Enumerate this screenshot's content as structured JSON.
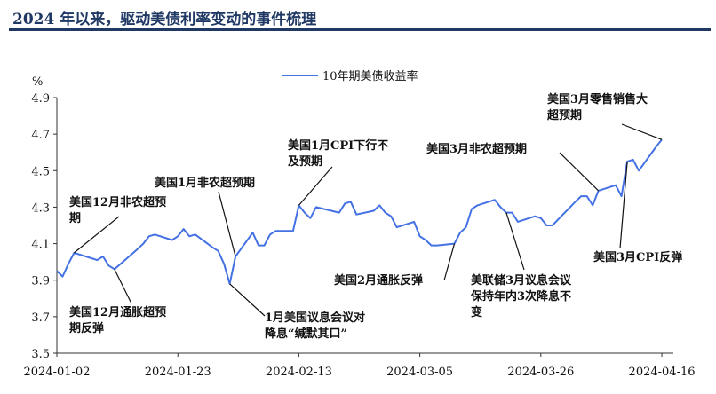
{
  "header": {
    "title": "2024 年以来，驱动美债利率变动的事件梳理"
  },
  "colors": {
    "series": "#4472e4",
    "axis": "#333333",
    "leader": "#111111",
    "title": "#1f3864"
  },
  "chart_data": {
    "type": "line",
    "ylabel": "%",
    "ylim": [
      3.5,
      4.9
    ],
    "yticks": [
      3.5,
      3.7,
      3.9,
      4.1,
      4.3,
      4.5,
      4.7,
      4.9
    ],
    "xlim": [
      "2024-01-02",
      "2024-04-18"
    ],
    "xticks": [
      "2024-01-02",
      "2024-01-23",
      "2024-02-13",
      "2024-03-05",
      "2024-03-26",
      "2024-04-16"
    ],
    "grid": false,
    "legend": "top-center",
    "series": [
      {
        "name": "10年期美债收益率",
        "points": [
          [
            "2024-01-02",
            3.95
          ],
          [
            "2024-01-03",
            3.92
          ],
          [
            "2024-01-04",
            3.99
          ],
          [
            "2024-01-05",
            4.05
          ],
          [
            "2024-01-08",
            4.02
          ],
          [
            "2024-01-09",
            4.01
          ],
          [
            "2024-01-10",
            4.03
          ],
          [
            "2024-01-11",
            3.98
          ],
          [
            "2024-01-12",
            3.96
          ],
          [
            "2024-01-16",
            4.07
          ],
          [
            "2024-01-17",
            4.1
          ],
          [
            "2024-01-18",
            4.14
          ],
          [
            "2024-01-19",
            4.15
          ],
          [
            "2024-01-22",
            4.12
          ],
          [
            "2024-01-23",
            4.14
          ],
          [
            "2024-01-24",
            4.18
          ],
          [
            "2024-01-25",
            4.14
          ],
          [
            "2024-01-26",
            4.15
          ],
          [
            "2024-01-29",
            4.08
          ],
          [
            "2024-01-30",
            4.06
          ],
          [
            "2024-01-31",
            3.99
          ],
          [
            "2024-02-01",
            3.88
          ],
          [
            "2024-02-02",
            4.03
          ],
          [
            "2024-02-05",
            4.16
          ],
          [
            "2024-02-06",
            4.09
          ],
          [
            "2024-02-07",
            4.09
          ],
          [
            "2024-02-08",
            4.15
          ],
          [
            "2024-02-09",
            4.17
          ],
          [
            "2024-02-12",
            4.17
          ],
          [
            "2024-02-13",
            4.31
          ],
          [
            "2024-02-14",
            4.27
          ],
          [
            "2024-02-15",
            4.24
          ],
          [
            "2024-02-16",
            4.3
          ],
          [
            "2024-02-20",
            4.27
          ],
          [
            "2024-02-21",
            4.32
          ],
          [
            "2024-02-22",
            4.33
          ],
          [
            "2024-02-23",
            4.26
          ],
          [
            "2024-02-26",
            4.28
          ],
          [
            "2024-02-27",
            4.31
          ],
          [
            "2024-02-28",
            4.27
          ],
          [
            "2024-02-29",
            4.25
          ],
          [
            "2024-03-01",
            4.19
          ],
          [
            "2024-03-04",
            4.22
          ],
          [
            "2024-03-05",
            4.14
          ],
          [
            "2024-03-06",
            4.12
          ],
          [
            "2024-03-07",
            4.09
          ],
          [
            "2024-03-08",
            4.09
          ],
          [
            "2024-03-11",
            4.1
          ],
          [
            "2024-03-12",
            4.16
          ],
          [
            "2024-03-13",
            4.19
          ],
          [
            "2024-03-14",
            4.29
          ],
          [
            "2024-03-15",
            4.31
          ],
          [
            "2024-03-18",
            4.34
          ],
          [
            "2024-03-19",
            4.3
          ],
          [
            "2024-03-20",
            4.27
          ],
          [
            "2024-03-21",
            4.27
          ],
          [
            "2024-03-22",
            4.22
          ],
          [
            "2024-03-25",
            4.25
          ],
          [
            "2024-03-26",
            4.24
          ],
          [
            "2024-03-27",
            4.2
          ],
          [
            "2024-03-28",
            4.2
          ],
          [
            "2024-04-01",
            4.33
          ],
          [
            "2024-04-02",
            4.36
          ],
          [
            "2024-04-03",
            4.36
          ],
          [
            "2024-04-04",
            4.31
          ],
          [
            "2024-04-05",
            4.39
          ],
          [
            "2024-04-08",
            4.42
          ],
          [
            "2024-04-09",
            4.36
          ],
          [
            "2024-04-10",
            4.55
          ],
          [
            "2024-04-11",
            4.56
          ],
          [
            "2024-04-12",
            4.5
          ],
          [
            "2024-04-15",
            4.63
          ],
          [
            "2024-04-16",
            4.67
          ]
        ]
      }
    ],
    "annotations": [
      {
        "lines": [
          "美国12月非农超预",
          "期"
        ],
        "anchor": [
          "2024-01-05",
          4.05
        ]
      },
      {
        "lines": [
          "美国12月通胀超预",
          "期反弹"
        ],
        "anchor": [
          "2024-01-12",
          3.96
        ]
      },
      {
        "lines": [
          "美国1月非农超预期"
        ],
        "anchor": [
          "2024-02-02",
          4.03
        ]
      },
      {
        "lines": [
          "1月美国议息会议对",
          "降息“缄默其口”"
        ],
        "anchor": [
          "2024-02-01",
          3.88
        ]
      },
      {
        "lines": [
          "美国1月CPI下行不",
          "及预期"
        ],
        "anchor": [
          "2024-02-13",
          4.31
        ]
      },
      {
        "lines": [
          "美国2月通胀反弹"
        ],
        "anchor": [
          "2024-03-11",
          4.1
        ]
      },
      {
        "lines": [
          "美国3月非农超预期"
        ],
        "anchor": [
          "2024-04-05",
          4.39
        ]
      },
      {
        "lines": [
          "美联储3月议息会议",
          "保持年内3次降息不",
          "变"
        ],
        "anchor": [
          "2024-03-20",
          4.27
        ]
      },
      {
        "lines": [
          "美国3月零售销售大",
          "超预期"
        ],
        "anchor": [
          "2024-04-16",
          4.67
        ]
      },
      {
        "lines": [
          "美国3月CPI反弹"
        ],
        "anchor": [
          "2024-04-10",
          4.55
        ]
      }
    ]
  }
}
